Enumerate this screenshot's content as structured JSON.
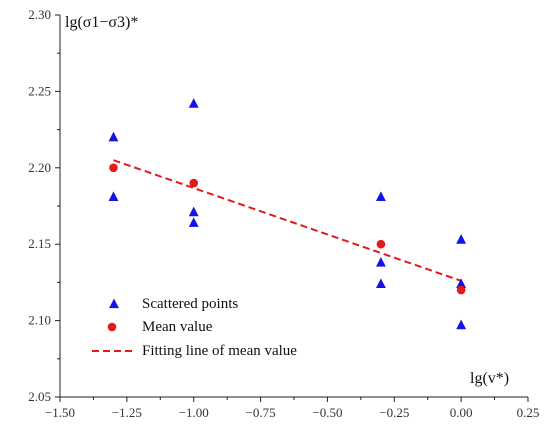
{
  "chart_data": {
    "type": "scatter",
    "xlabel": "lg(v*)",
    "ylabel": "lg(σ1−σ3)*",
    "xlim": [
      -1.5,
      0.25
    ],
    "ylim": [
      2.05,
      2.3
    ],
    "x_ticks": [
      -1.5,
      -1.25,
      -1.0,
      -0.75,
      -0.5,
      -0.25,
      0.0,
      0.25
    ],
    "x_tick_labels": [
      "−1.50",
      "−1.25",
      "−1.00",
      "−0.75",
      "−0.50",
      "−0.25",
      "0.00",
      "0.25"
    ],
    "y_ticks": [
      2.05,
      2.1,
      2.15,
      2.2,
      2.25,
      2.3
    ],
    "y_tick_labels": [
      "2.05",
      "2.10",
      "2.15",
      "2.20",
      "2.25",
      "2.30"
    ],
    "grid": false,
    "legend_position": "bottom-left",
    "series": [
      {
        "name": "Scattered points",
        "kind": "scatter",
        "marker": "triangle",
        "color": "#1414e6",
        "points": [
          {
            "x": -1.3,
            "y": 2.22
          },
          {
            "x": -1.3,
            "y": 2.181
          },
          {
            "x": -1.0,
            "y": 2.242
          },
          {
            "x": -1.0,
            "y": 2.171
          },
          {
            "x": -1.0,
            "y": 2.164
          },
          {
            "x": -0.3,
            "y": 2.181
          },
          {
            "x": -0.3,
            "y": 2.138
          },
          {
            "x": -0.3,
            "y": 2.124
          },
          {
            "x": 0.0,
            "y": 2.153
          },
          {
            "x": 0.0,
            "y": 2.124
          },
          {
            "x": 0.0,
            "y": 2.097
          }
        ]
      },
      {
        "name": "Mean value",
        "kind": "scatter",
        "marker": "circle",
        "color": "#e61919",
        "points": [
          {
            "x": -1.3,
            "y": 2.2
          },
          {
            "x": -1.0,
            "y": 2.19
          },
          {
            "x": -0.3,
            "y": 2.15
          },
          {
            "x": 0.0,
            "y": 2.12
          }
        ]
      },
      {
        "name": "Fitting line of mean value",
        "kind": "line",
        "style": "dashed",
        "color": "#e61919",
        "points": [
          {
            "x": -1.3,
            "y": 2.205
          },
          {
            "x": 0.0,
            "y": 2.126
          }
        ]
      }
    ]
  }
}
